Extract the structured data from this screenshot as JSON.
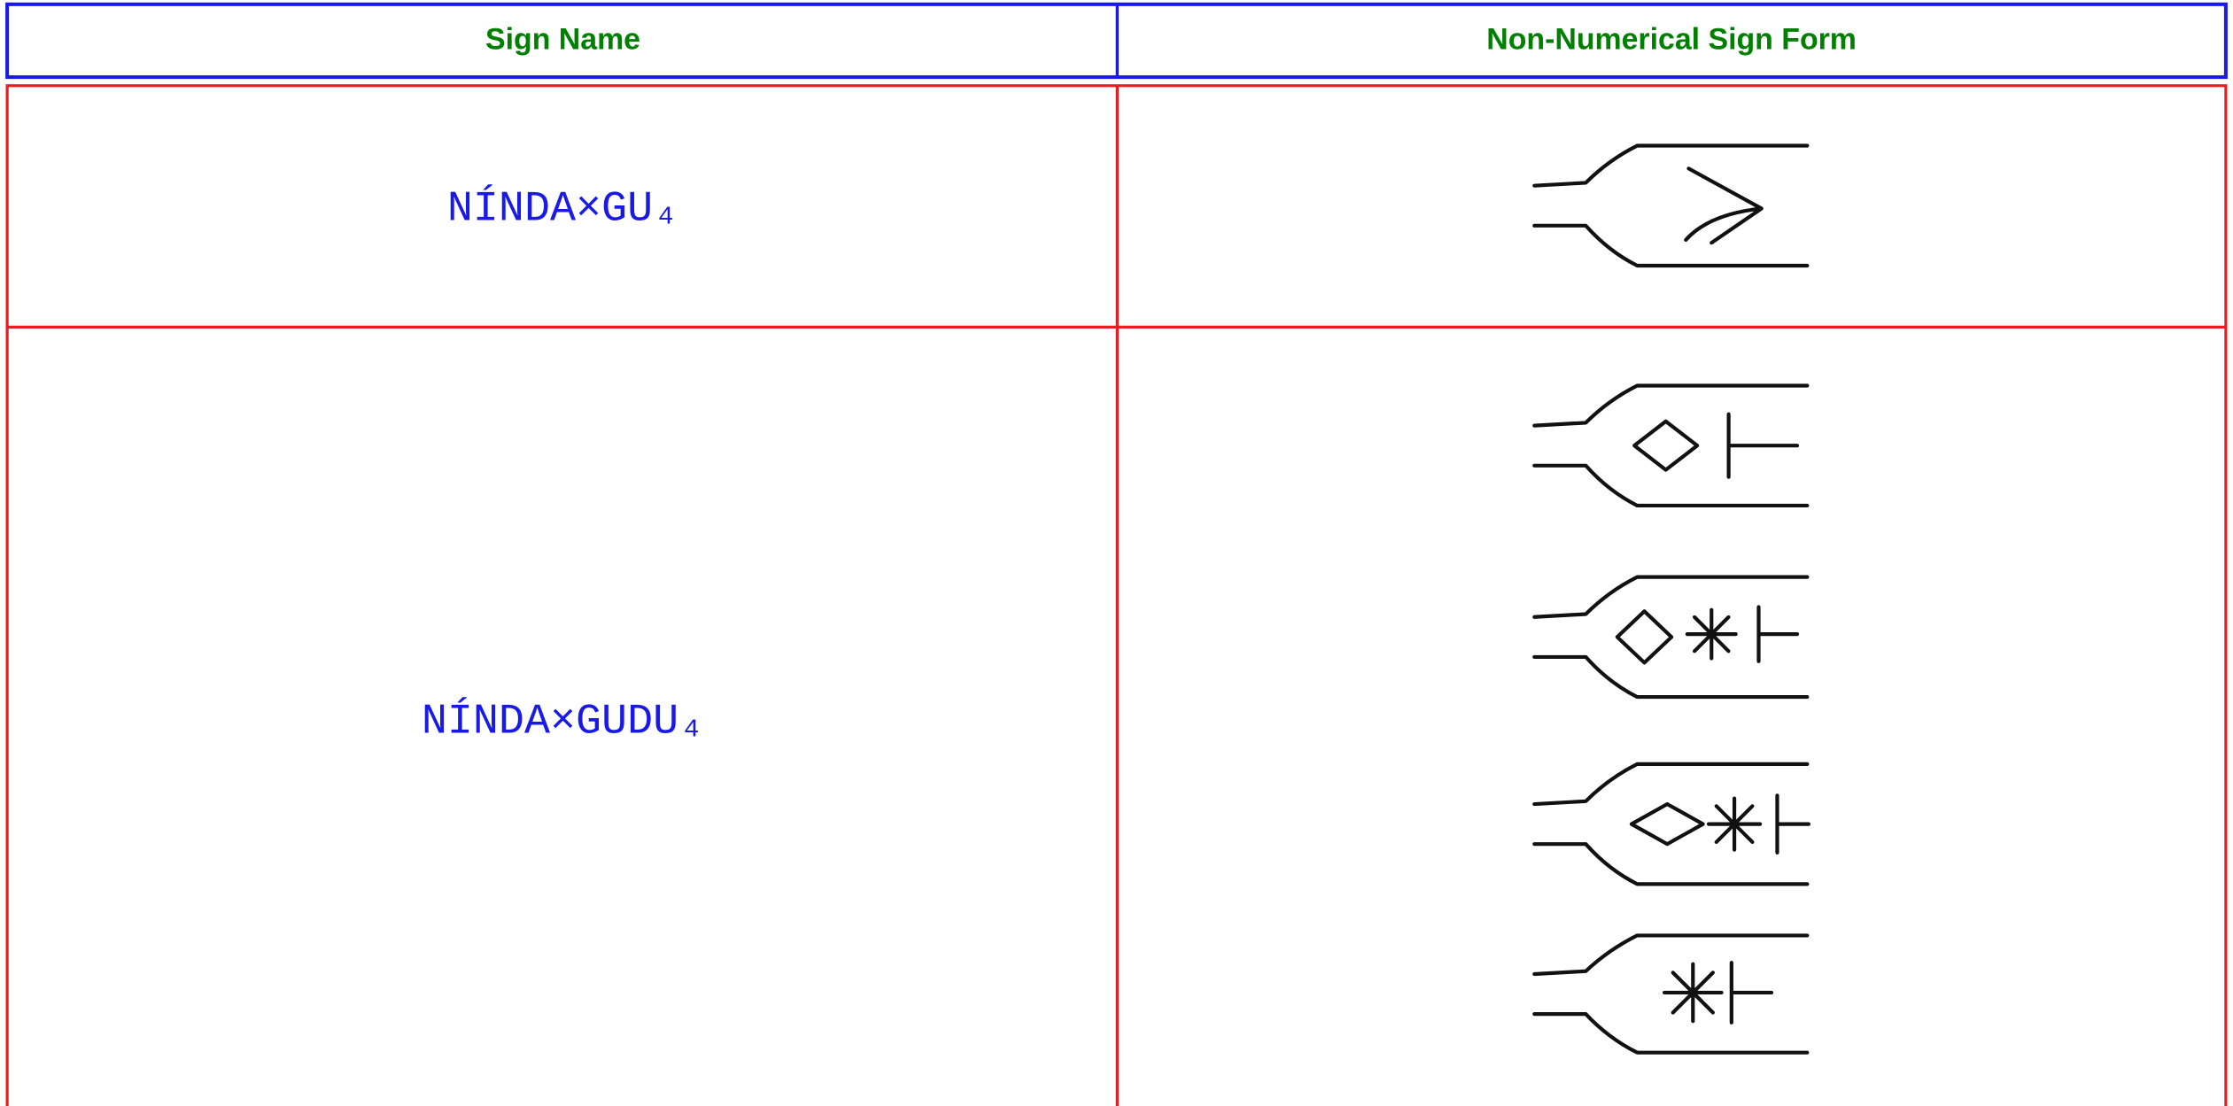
{
  "header": {
    "columns": [
      "Sign Name",
      "Non-Numerical Sign Form"
    ]
  },
  "rows": [
    {
      "name": "NÍNDA×GU₄"
    },
    {
      "name": "NÍNDA×GUDU₄"
    }
  ]
}
